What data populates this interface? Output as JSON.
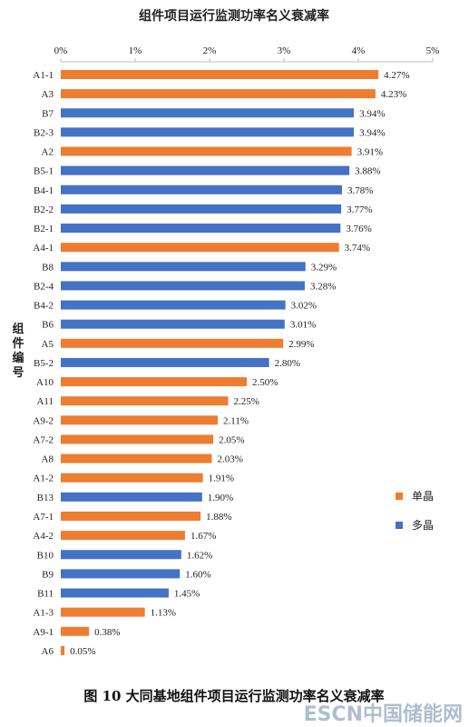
{
  "chart_data": {
    "type": "bar",
    "orientation": "horizontal",
    "title": "组件项目运行监测功率名义衰减率",
    "ylabel": "组件编号",
    "xlim": [
      0,
      5
    ],
    "x_ticks": [
      "0%",
      "1%",
      "2%",
      "3%",
      "4%",
      "5%"
    ],
    "grid": false,
    "legend_position": "right",
    "legend": [
      {
        "name": "单晶",
        "color": "#ed7d31"
      },
      {
        "name": "多晶",
        "color": "#4472c4"
      }
    ],
    "categories": [
      "A1-1",
      "A3",
      "B7",
      "B2-3",
      "A2",
      "B5-1",
      "B4-1",
      "B2-2",
      "B2-1",
      "A4-1",
      "B8",
      "B2-4",
      "B4-2",
      "B6",
      "A5",
      "B5-2",
      "A10",
      "A11",
      "A9-2",
      "A7-2",
      "A8",
      "A1-2",
      "B13",
      "A7-1",
      "A4-2",
      "B10",
      "B9",
      "B11",
      "A1-3",
      "A9-1",
      "A6"
    ],
    "values": [
      4.27,
      4.23,
      3.94,
      3.94,
      3.91,
      3.88,
      3.78,
      3.77,
      3.76,
      3.74,
      3.29,
      3.28,
      3.02,
      3.01,
      2.99,
      2.8,
      2.5,
      2.25,
      2.11,
      2.05,
      2.03,
      1.91,
      1.9,
      1.88,
      1.67,
      1.62,
      1.6,
      1.45,
      1.13,
      0.38,
      0.05
    ],
    "value_labels": [
      "4.27%",
      "4.23%",
      "3.94%",
      "3.94%",
      "3.91%",
      "3.88%",
      "3.78%",
      "3.77%",
      "3.76%",
      "3.74%",
      "3.29%",
      "3.28%",
      "3.02%",
      "3.01%",
      "2.99%",
      "2.80%",
      "2.50%",
      "2.25%",
      "2.11%",
      "2.05%",
      "2.03%",
      "1.91%",
      "1.90%",
      "1.88%",
      "1.67%",
      "1.62%",
      "1.60%",
      "1.45%",
      "1.13%",
      "0.38%",
      "0.05%"
    ],
    "types": [
      "单晶",
      "单晶",
      "多晶",
      "多晶",
      "单晶",
      "多晶",
      "多晶",
      "多晶",
      "多晶",
      "单晶",
      "多晶",
      "多晶",
      "多晶",
      "多晶",
      "单晶",
      "多晶",
      "单晶",
      "单晶",
      "单晶",
      "单晶",
      "单晶",
      "单晶",
      "多晶",
      "单晶",
      "单晶",
      "多晶",
      "多晶",
      "多晶",
      "单晶",
      "单晶",
      "单晶"
    ]
  },
  "caption": {
    "number": "图 10",
    "text": "大同基地组件项目运行监测功率名义衰减率"
  },
  "watermark": "ESCN中国储能网"
}
